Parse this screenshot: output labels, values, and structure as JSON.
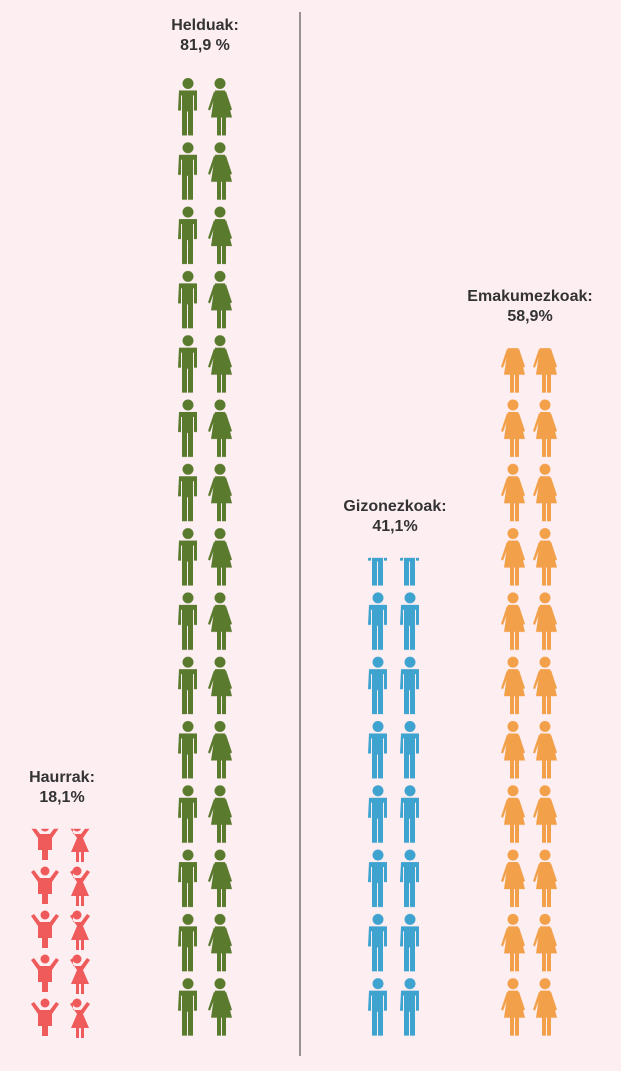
{
  "chart_data": {
    "type": "pictogram",
    "categories": [
      "Haurrak:",
      "Helduak:",
      "Gizonezkoak:",
      "Emakumezkoak:"
    ],
    "values": [
      18.1,
      81.9,
      41.1,
      58.9
    ],
    "value_labels": [
      "18,1%",
      "81,9 %",
      "41,1%",
      "58,9%"
    ],
    "colors": [
      "#ef5a5a",
      "#5a7a2e",
      "#3ea3cf",
      "#f3a04a"
    ]
  }
}
